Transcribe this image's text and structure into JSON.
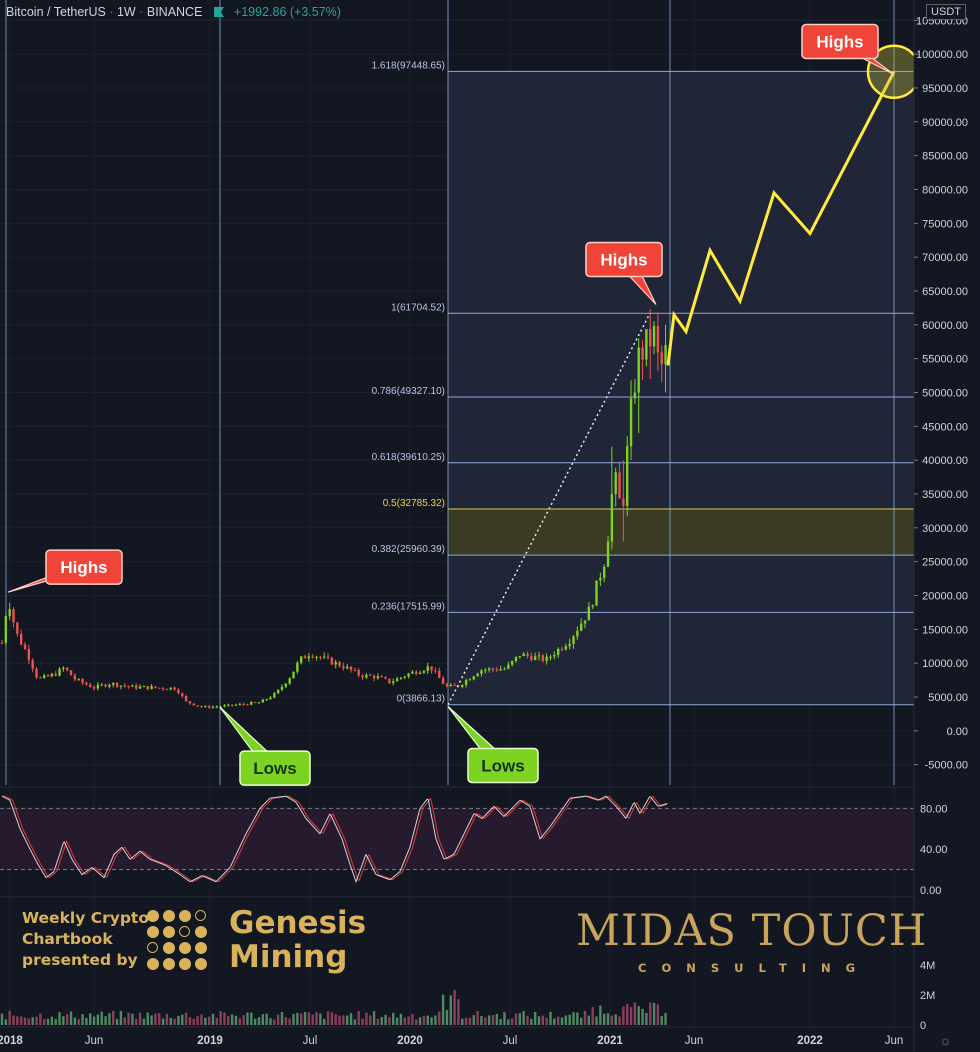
{
  "header": {
    "symbol": "Bitcoin / TetherUS",
    "sep": "·",
    "interval": "1W",
    "exchange": "BINANCE",
    "change": "+1992.86 (+3.57%)"
  },
  "currency_badge": "USDT",
  "branding": {
    "promo_lines": [
      "Weekly Crypto",
      "Chartbook",
      "presented by"
    ],
    "genesis_lines": [
      "Genesis",
      "Mining"
    ],
    "midas_main": "MIDAS TOUCH",
    "midas_sub": "CONSULTING"
  },
  "colors": {
    "background": "#131722",
    "bull": "#7dd321",
    "bear": "#ef5350",
    "projection": "#ffeb3b",
    "fib_line": "#8fa8d8",
    "fib_zone": "#22283a",
    "golden_zone": "#3b3a22",
    "callout_red": "#f04438",
    "callout_green": "#7cd321"
  },
  "chart_data": [
    {
      "type": "candlestick",
      "price_axis": {
        "ticks": [
          105000,
          100000,
          95000,
          90000,
          85000,
          80000,
          75000,
          70000,
          65000,
          60000,
          55000,
          50000,
          45000,
          40000,
          35000,
          30000,
          25000,
          20000,
          15000,
          10000,
          5000,
          0,
          -5000
        ],
        "tick_labels": [
          "105000.00",
          "100000.00",
          "95000.00",
          "90000.00",
          "85000.00",
          "80000.00",
          "75000.00",
          "70000.00",
          "65000.00",
          "60000.00",
          "55000.00",
          "50000.00",
          "45000.00",
          "40000.00",
          "35000.00",
          "30000.00",
          "25000.00",
          "20000.00",
          "15000.00",
          "10000.00",
          "5000.00",
          "0.00",
          "-5000.00"
        ],
        "range": [
          -8000,
          108000
        ]
      },
      "time_axis": {
        "labels": [
          "2018",
          "Jun",
          "2019",
          "Jul",
          "2020",
          "Jul",
          "2021",
          "Jun",
          "2022",
          "Jun"
        ],
        "label_dates": [
          2018.0,
          2018.42,
          2019.0,
          2019.5,
          2020.0,
          2020.5,
          2021.0,
          2021.42,
          2022.0,
          2022.42
        ],
        "range": [
          2017.95,
          2022.52
        ]
      },
      "price_anchors": [
        [
          2017.96,
          13000
        ],
        [
          2017.99,
          19800
        ],
        [
          2018.03,
          14500
        ],
        [
          2018.09,
          11200
        ],
        [
          2018.14,
          7600
        ],
        [
          2018.22,
          8300
        ],
        [
          2018.27,
          9300
        ],
        [
          2018.33,
          7500
        ],
        [
          2018.42,
          6400
        ],
        [
          2018.5,
          7000
        ],
        [
          2018.6,
          6500
        ],
        [
          2018.7,
          6400
        ],
        [
          2018.83,
          6300
        ],
        [
          2018.88,
          4300
        ],
        [
          2018.96,
          3500
        ],
        [
          2019.05,
          3600
        ],
        [
          2019.15,
          3900
        ],
        [
          2019.25,
          4200
        ],
        [
          2019.33,
          5500
        ],
        [
          2019.4,
          8000
        ],
        [
          2019.45,
          10500
        ],
        [
          2019.5,
          11500
        ],
        [
          2019.58,
          10500
        ],
        [
          2019.67,
          9500
        ],
        [
          2019.75,
          8200
        ],
        [
          2019.83,
          8000
        ],
        [
          2019.9,
          7200
        ],
        [
          2020.0,
          8500
        ],
        [
          2020.1,
          9500
        ],
        [
          2020.18,
          6500
        ],
        [
          2020.24,
          6600
        ],
        [
          2020.35,
          9000
        ],
        [
          2020.48,
          9200
        ],
        [
          2020.55,
          11300
        ],
        [
          2020.68,
          10500
        ],
        [
          2020.8,
          13500
        ],
        [
          2020.9,
          18000
        ],
        [
          2020.98,
          26000
        ],
        [
          2021.02,
          38000
        ],
        [
          2021.06,
          32000
        ],
        [
          2021.1,
          46000
        ],
        [
          2021.14,
          55000
        ],
        [
          2021.18,
          57000
        ],
        [
          2021.22,
          58500
        ],
        [
          2021.25,
          53000
        ],
        [
          2021.29,
          57000
        ]
      ],
      "spikes": [
        [
          2021.01,
          42000,
          29000
        ],
        [
          2021.06,
          40000,
          28000
        ],
        [
          2021.1,
          49000,
          40000
        ],
        [
          2021.15,
          58000,
          44000
        ],
        [
          2021.2,
          61700,
          52000
        ],
        [
          2021.27,
          60000,
          50000
        ]
      ],
      "fibonacci": [
        {
          "level": "1.618",
          "value": 97448.65,
          "label": "1.618(97448.65)"
        },
        {
          "level": "1",
          "value": 61704.52,
          "label": "1(61704.52)"
        },
        {
          "level": "0.786",
          "value": 49327.1,
          "label": "0.786(49327.10)"
        },
        {
          "level": "0.618",
          "value": 39610.25,
          "label": "0.618(39610.25)"
        },
        {
          "level": "0.5",
          "value": 32785.32,
          "label": "0.5(32785.32)"
        },
        {
          "level": "0.382",
          "value": 25960.39,
          "label": "0.382(25960.39)"
        },
        {
          "level": "0.236",
          "value": 17515.99,
          "label": "0.236(17515.99)"
        },
        {
          "level": "0",
          "value": 3866.13,
          "label": "0(3866.13)"
        }
      ],
      "fib_range_dates": [
        2020.19,
        2022.52
      ],
      "trend_line": {
        "from": [
          2020.19,
          3866.13
        ],
        "to": [
          2021.2,
          61704.52
        ]
      },
      "vertical_lines": [
        2017.98,
        2019.05,
        2020.19,
        2021.3,
        2022.42
      ],
      "projection": {
        "points": [
          [
            2021.29,
            54000
          ],
          [
            2021.32,
            61500
          ],
          [
            2021.38,
            59000
          ],
          [
            2021.5,
            71000
          ],
          [
            2021.65,
            63500
          ],
          [
            2021.82,
            79500
          ],
          [
            2022.0,
            73500
          ],
          [
            2022.42,
            97400
          ]
        ]
      },
      "annotations": [
        {
          "text": "Highs",
          "style": "red",
          "target": [
            2017.99,
            20500
          ]
        },
        {
          "text": "Lows",
          "style": "green",
          "target": [
            2019.05,
            3500
          ]
        },
        {
          "text": "Lows",
          "style": "green",
          "target": [
            2020.19,
            3600
          ]
        },
        {
          "text": "Highs",
          "style": "red",
          "target": [
            2021.23,
            63000
          ]
        },
        {
          "text": "Highs",
          "style": "red",
          "target": [
            2022.42,
            97000
          ]
        }
      ]
    },
    {
      "type": "line",
      "name": "",
      "axis_ticks": [
        80,
        40,
        0
      ],
      "axis_labels": [
        "80.00",
        "40.00",
        "0.00"
      ],
      "range": [
        -5,
        100
      ],
      "bands": [
        80,
        20
      ],
      "anchors": [
        [
          2017.96,
          92
        ],
        [
          2018.0,
          88
        ],
        [
          2018.05,
          60
        ],
        [
          2018.1,
          40
        ],
        [
          2018.14,
          25
        ],
        [
          2018.18,
          12
        ],
        [
          2018.22,
          18
        ],
        [
          2018.27,
          48
        ],
        [
          2018.31,
          30
        ],
        [
          2018.36,
          15
        ],
        [
          2018.41,
          22
        ],
        [
          2018.47,
          12
        ],
        [
          2018.52,
          35
        ],
        [
          2018.56,
          42
        ],
        [
          2018.6,
          30
        ],
        [
          2018.65,
          38
        ],
        [
          2018.7,
          30
        ],
        [
          2018.78,
          24
        ],
        [
          2018.85,
          15
        ],
        [
          2018.9,
          8
        ],
        [
          2018.96,
          14
        ],
        [
          2019.03,
          8
        ],
        [
          2019.1,
          22
        ],
        [
          2019.18,
          55
        ],
        [
          2019.25,
          80
        ],
        [
          2019.3,
          90
        ],
        [
          2019.38,
          92
        ],
        [
          2019.43,
          86
        ],
        [
          2019.48,
          70
        ],
        [
          2019.55,
          55
        ],
        [
          2019.6,
          75
        ],
        [
          2019.66,
          50
        ],
        [
          2019.7,
          25
        ],
        [
          2019.73,
          8
        ],
        [
          2019.78,
          35
        ],
        [
          2019.83,
          15
        ],
        [
          2019.9,
          10
        ],
        [
          2019.95,
          18
        ],
        [
          2020.0,
          42
        ],
        [
          2020.05,
          80
        ],
        [
          2020.09,
          90
        ],
        [
          2020.13,
          50
        ],
        [
          2020.17,
          30
        ],
        [
          2020.22,
          35
        ],
        [
          2020.27,
          55
        ],
        [
          2020.32,
          75
        ],
        [
          2020.36,
          70
        ],
        [
          2020.42,
          82
        ],
        [
          2020.47,
          72
        ],
        [
          2020.55,
          88
        ],
        [
          2020.6,
          82
        ],
        [
          2020.65,
          50
        ],
        [
          2020.7,
          62
        ],
        [
          2020.75,
          76
        ],
        [
          2020.8,
          90
        ],
        [
          2020.88,
          92
        ],
        [
          2020.94,
          88
        ],
        [
          2020.98,
          92
        ],
        [
          2021.04,
          80
        ],
        [
          2021.08,
          70
        ],
        [
          2021.12,
          86
        ],
        [
          2021.15,
          75
        ],
        [
          2021.2,
          92
        ],
        [
          2021.24,
          82
        ],
        [
          2021.29,
          85
        ]
      ]
    },
    {
      "type": "bar",
      "name": "volume",
      "axis_labels": [
        "4M",
        "2M",
        "0"
      ],
      "axis_ticks": [
        4,
        2,
        0
      ],
      "range": [
        0,
        5.8
      ]
    }
  ]
}
